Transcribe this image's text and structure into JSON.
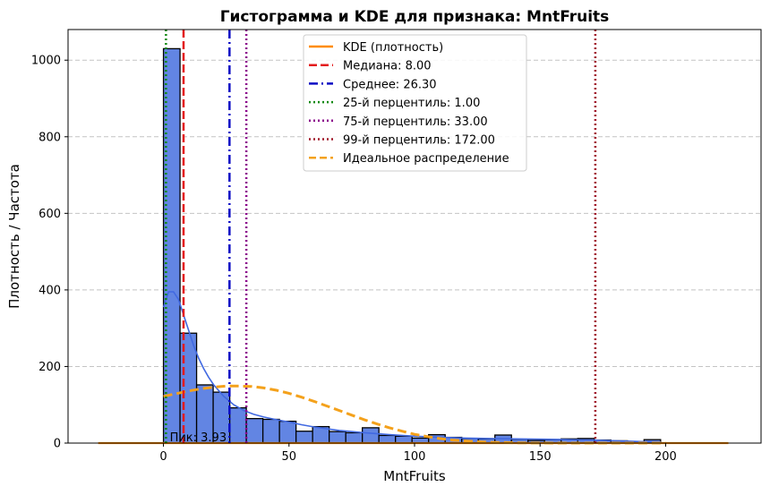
{
  "chart_data": {
    "type": "bar",
    "title": "Гистограмма и KDE для признака: MntFruits",
    "xlabel": "MntFruits",
    "ylabel": "Плотность / Частота",
    "xlim": [
      -38,
      238
    ],
    "ylim": [
      0,
      1080
    ],
    "xticks": [
      0,
      50,
      100,
      150,
      200
    ],
    "yticks": [
      0,
      200,
      400,
      600,
      800,
      1000
    ],
    "grid": "y-dashed",
    "legend_position": "top-center",
    "bin_width": 6.6,
    "bins": [
      {
        "x0": 0,
        "x1": 6.6,
        "count": 1030
      },
      {
        "x0": 6.6,
        "x1": 13.2,
        "count": 287
      },
      {
        "x0": 13.2,
        "x1": 19.8,
        "count": 152
      },
      {
        "x0": 19.8,
        "x1": 26.4,
        "count": 133
      },
      {
        "x0": 26.4,
        "x1": 33.0,
        "count": 92
      },
      {
        "x0": 33.0,
        "x1": 39.6,
        "count": 64
      },
      {
        "x0": 39.6,
        "x1": 46.2,
        "count": 62
      },
      {
        "x0": 46.2,
        "x1": 52.8,
        "count": 57
      },
      {
        "x0": 52.8,
        "x1": 59.4,
        "count": 31
      },
      {
        "x0": 59.4,
        "x1": 66.0,
        "count": 43
      },
      {
        "x0": 66.0,
        "x1": 72.6,
        "count": 30
      },
      {
        "x0": 72.6,
        "x1": 79.2,
        "count": 27
      },
      {
        "x0": 79.2,
        "x1": 85.8,
        "count": 40
      },
      {
        "x0": 85.8,
        "x1": 92.4,
        "count": 20
      },
      {
        "x0": 92.4,
        "x1": 99.0,
        "count": 18
      },
      {
        "x0": 99.0,
        "x1": 105.6,
        "count": 13
      },
      {
        "x0": 105.6,
        "x1": 112.2,
        "count": 22
      },
      {
        "x0": 112.2,
        "x1": 118.8,
        "count": 15
      },
      {
        "x0": 118.8,
        "x1": 125.4,
        "count": 12
      },
      {
        "x0": 125.4,
        "x1": 132.0,
        "count": 11
      },
      {
        "x0": 132.0,
        "x1": 138.6,
        "count": 21
      },
      {
        "x0": 138.6,
        "x1": 145.2,
        "count": 10
      },
      {
        "x0": 145.2,
        "x1": 151.8,
        "count": 7
      },
      {
        "x0": 151.8,
        "x1": 158.4,
        "count": 9
      },
      {
        "x0": 158.4,
        "x1": 165.0,
        "count": 11
      },
      {
        "x0": 165.0,
        "x1": 171.6,
        "count": 12
      },
      {
        "x0": 171.6,
        "x1": 178.2,
        "count": 8
      },
      {
        "x0": 178.2,
        "x1": 184.8,
        "count": 6
      },
      {
        "x0": 184.8,
        "x1": 191.4,
        "count": 3
      },
      {
        "x0": 191.4,
        "x1": 198.0,
        "count": 9
      }
    ],
    "series": [
      {
        "name": "KDE (плотность)",
        "kind": "flat-line",
        "color": "#ff8c00",
        "x": [
          -26,
          225
        ],
        "y": [
          0,
          0
        ]
      },
      {
        "kind": "histogram-kde",
        "color": "#4169e1",
        "x": [
          0,
          2,
          4,
          6,
          8,
          10,
          12,
          14,
          16,
          18,
          20,
          24,
          28,
          32,
          36,
          40,
          45,
          50,
          55,
          60,
          70,
          80,
          90,
          100,
          110,
          120,
          130,
          140,
          150,
          160,
          170,
          180,
          190,
          198
        ],
        "y": [
          355,
          395,
          395,
          375,
          335,
          295,
          255,
          222,
          195,
          172,
          152,
          122,
          100,
          85,
          75,
          68,
          61,
          55,
          48,
          42,
          33,
          27,
          22,
          18,
          15,
          13,
          12,
          11,
          10,
          9,
          8,
          6,
          4,
          3
        ]
      },
      {
        "name": "Идеальное распределение",
        "kind": "dashed-curve",
        "color": "#f4a11b",
        "x": [
          0,
          5,
          10,
          15,
          20,
          25,
          30,
          35,
          40,
          45,
          50,
          55,
          60,
          65,
          70,
          75,
          80,
          85,
          90,
          95,
          100,
          105,
          110,
          115,
          120,
          125,
          130,
          135,
          140,
          145,
          150,
          155,
          160,
          165,
          170,
          175,
          180,
          185,
          190,
          195,
          200
        ],
        "y": [
          122,
          129,
          136,
          142,
          146,
          149,
          149,
          148,
          144,
          138,
          130,
          120,
          109,
          97,
          85,
          73,
          61,
          50,
          40,
          31,
          23,
          17,
          12,
          8,
          5.5,
          3.5,
          2.2,
          1.3,
          0.8,
          0.4,
          0.2,
          0.1,
          0.05,
          0.02,
          0.01,
          0,
          0,
          0,
          0,
          0,
          0
        ]
      }
    ],
    "vlines": [
      {
        "label": "Медиана: 8.00",
        "x": 8.0,
        "color": "#e31a1c",
        "style": "dashed"
      },
      {
        "label": "Среднее: 26.30",
        "x": 26.3,
        "color": "#0b0bc4",
        "style": "dashdot"
      },
      {
        "label": "25-й перцентиль: 1.00",
        "x": 1.0,
        "color": "#138a13",
        "style": "dotted"
      },
      {
        "label": "75-й перцентиль: 33.00",
        "x": 33.0,
        "color": "#8b008b",
        "style": "dotted"
      },
      {
        "label": "99-й перцентиль: 172.00",
        "x": 172.0,
        "color": "#a0182a",
        "style": "dotted"
      }
    ],
    "annotations": [
      {
        "text": "Пик: 3.93",
        "x": 2.5,
        "y": 3
      }
    ],
    "colors": {
      "bar_fill": "#6285e3",
      "bar_edge": "#000000",
      "grid": "#c4c4c4"
    }
  }
}
